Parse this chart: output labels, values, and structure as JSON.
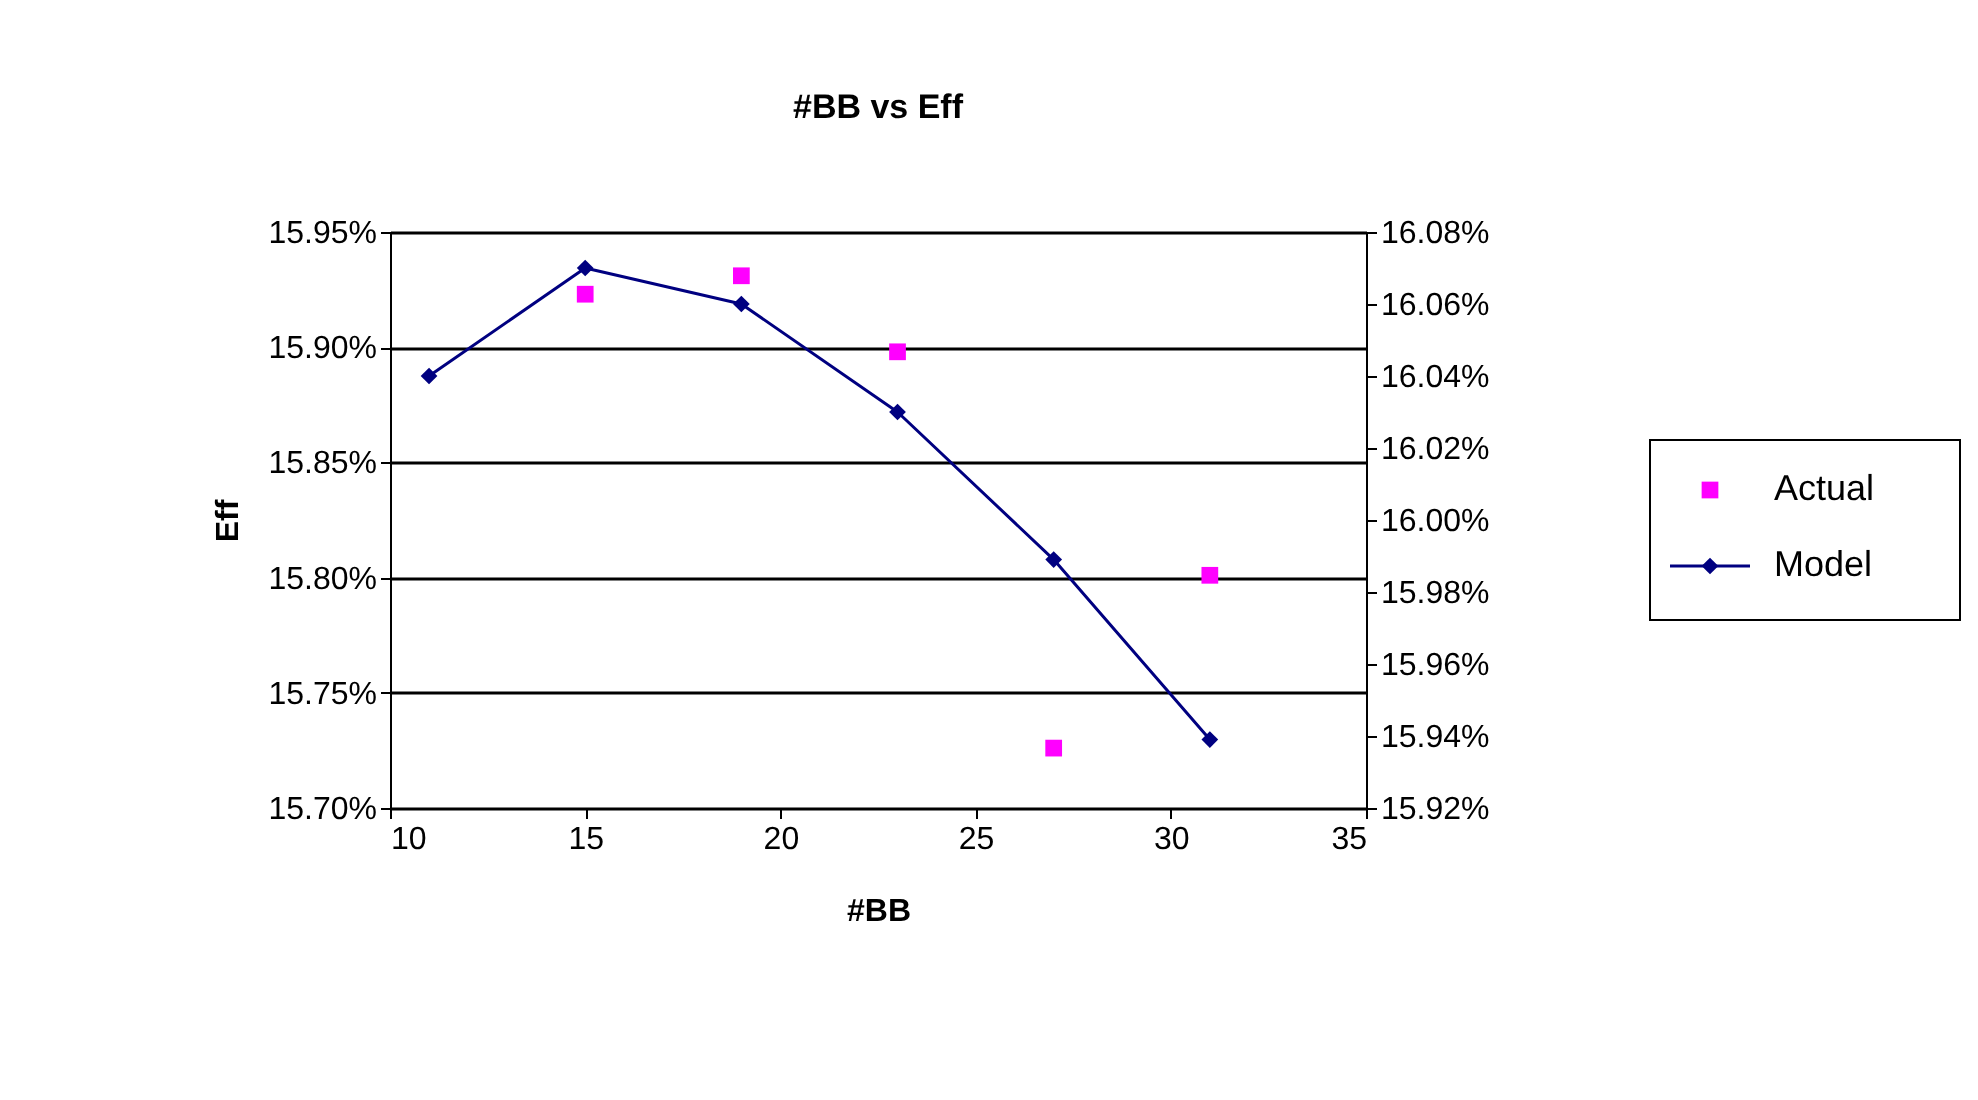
{
  "chart_data": {
    "type": "line",
    "title": "#BB vs Eff",
    "xlabel": "#BB",
    "ylabel": "Eff",
    "x": [
      11,
      15,
      19,
      23,
      27,
      31
    ],
    "series": [
      {
        "name": "Actual",
        "type": "scatter",
        "marker": "square",
        "color": "#ff00ff",
        "values": [
          null,
          15.923,
          15.931,
          15.898,
          15.726,
          15.801
        ]
      },
      {
        "name": "Model",
        "marker": "diamond",
        "axis": "y2",
        "color": "#000080",
        "values": [
          16.04,
          16.07,
          16.06,
          16.03,
          15.989,
          15.939
        ]
      }
    ],
    "xlim": [
      10,
      35
    ],
    "xticks": [
      10,
      15,
      20,
      25,
      30,
      35
    ],
    "ylim": [
      15.7,
      15.95
    ],
    "yticks": [
      {
        "value": 15.7,
        "label": "15.70%"
      },
      {
        "value": 15.75,
        "label": "15.75%"
      },
      {
        "value": 15.8,
        "label": "15.80%"
      },
      {
        "value": 15.85,
        "label": "15.85%"
      },
      {
        "value": 15.9,
        "label": "15.90%"
      },
      {
        "value": 15.95,
        "label": "15.95%"
      }
    ],
    "y2lim": [
      15.92,
      16.08
    ],
    "y2ticks": [
      {
        "value": 15.92,
        "label": "15.92%"
      },
      {
        "value": 15.94,
        "label": "15.94%"
      },
      {
        "value": 15.96,
        "label": "15.96%"
      },
      {
        "value": 15.98,
        "label": "15.98%"
      },
      {
        "value": 16.0,
        "label": "16.00%"
      },
      {
        "value": 16.02,
        "label": "16.02%"
      },
      {
        "value": 16.04,
        "label": "16.04%"
      },
      {
        "value": 16.06,
        "label": "16.06%"
      },
      {
        "value": 16.08,
        "label": "16.08%"
      }
    ],
    "grid": "y",
    "legend": "right",
    "line_style": "solid"
  }
}
